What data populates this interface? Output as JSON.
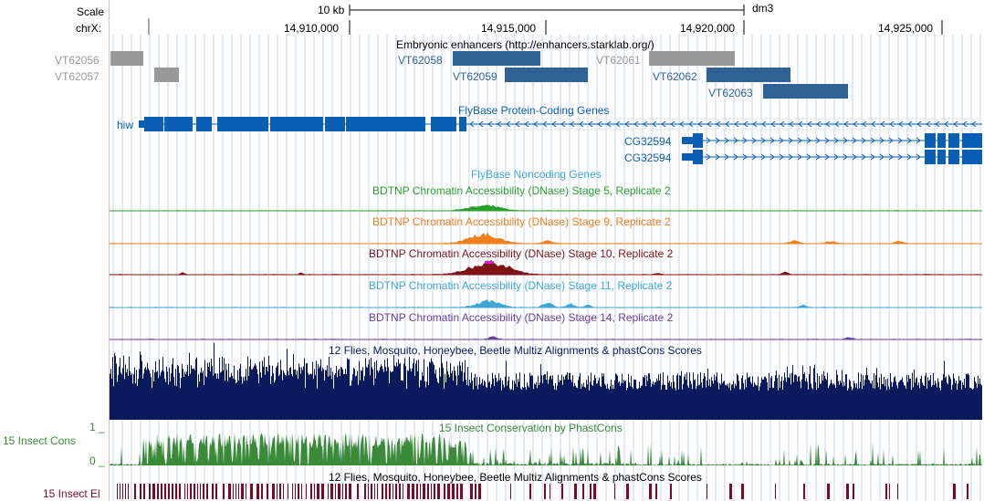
{
  "ruler": {
    "scale_label": "Scale",
    "chrom_label": "chrX:",
    "scale_bar_text": "10 kb",
    "assembly": "dm3",
    "positions": [
      "14,910,000",
      "14,915,000",
      "14,920,000",
      "14,925,000"
    ]
  },
  "tracks": {
    "enhancers": {
      "title": "Embryonic enhancers (http://enhancers.starklab.org/)",
      "items": [
        {
          "name": "VT62056",
          "status": "gray"
        },
        {
          "name": "VT62057",
          "status": "gray"
        },
        {
          "name": "VT62058",
          "status": "blue"
        },
        {
          "name": "VT62059",
          "status": "blue"
        },
        {
          "name": "VT62061",
          "status": "gray"
        },
        {
          "name": "VT62062",
          "status": "blue"
        },
        {
          "name": "VT62063",
          "status": "blue"
        }
      ]
    },
    "genes": {
      "title": "FlyBase Protein-Coding Genes",
      "items": [
        "hiw",
        "CG32594",
        "CG32594"
      ]
    },
    "noncoding": {
      "title": "FlyBase Noncoding Genes"
    },
    "dnase": [
      {
        "title": "BDTNP Chromatin Accessibility (DNase) Stage 5, Replicate 2",
        "color": "#2ca02c"
      },
      {
        "title": "BDTNP Chromatin Accessibility (DNase) Stage 9, Replicate 2",
        "color": "#f07f1e"
      },
      {
        "title": "BDTNP Chromatin Accessibility (DNase) Stage 10, Replicate 2",
        "color": "#7f1416"
      },
      {
        "title": "BDTNP Chromatin Accessibility (DNase) Stage 11, Replicate 2",
        "color": "#3ea7d5"
      },
      {
        "title": "BDTNP Chromatin Accessibility (DNase) Stage 14, Replicate 2",
        "color": "#6a3d9a"
      }
    ],
    "multiz": {
      "title": "12 Flies, Mosquito, Honeybee, Beetle Multiz Alignments & phastCons Scores",
      "color": "#0a1a5c"
    },
    "phastcons": {
      "title": "15 Insect Conservation by PhastCons",
      "side_label": "15 Insect Cons",
      "ymax": "1 _",
      "ymin": "0 _",
      "color": "#3a8a3a"
    },
    "elements": {
      "title": "12 Flies, Mosquito, Honeybee, Beetle Multiz Alignments & phastCons Scores",
      "side_label": "15 Insect El",
      "color": "#7a0a28"
    }
  },
  "colors": {
    "gene_blue": "#0a5fb4",
    "enhancer_blue": "#2f6396",
    "enhancer_gray": "#999999",
    "grid": "#c9d3f2"
  }
}
